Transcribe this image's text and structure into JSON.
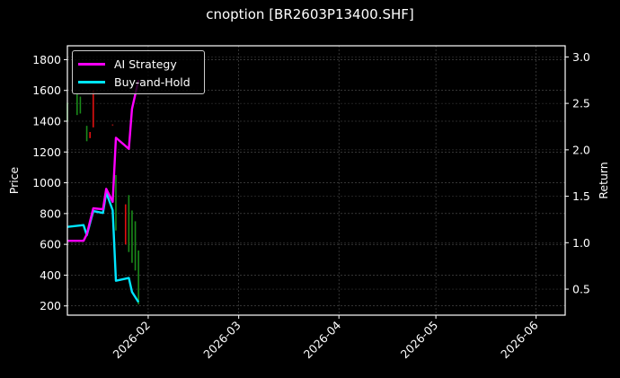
{
  "title": "cnoption [BR2603P13400.SHF]",
  "legend": [
    {
      "label": "AI Strategy",
      "color": "#ff00ff"
    },
    {
      "label": "Buy-and-Hold",
      "color": "#00e5ff"
    }
  ],
  "chart_data": {
    "type": "line",
    "title": "cnoption [BR2603P13400.SHF]",
    "xlabel": "",
    "ylabel": "Price",
    "y2label": "Return",
    "x_ticks": [
      "2026-02",
      "2026-03",
      "2026-04",
      "2026-05",
      "2026-06"
    ],
    "y_ticks": [
      200,
      400,
      600,
      800,
      1000,
      1200,
      1400,
      1600,
      1800
    ],
    "y2_ticks": [
      0.5,
      1.0,
      1.5,
      2.0,
      2.5,
      3.0
    ],
    "ylim": [
      140,
      1890
    ],
    "y2lim": [
      0.22,
      3.12
    ],
    "xlim": [
      "2026-01-07",
      "2026-06-10"
    ],
    "grid": true,
    "legend_position": "upper left",
    "series": [
      {
        "name": "AI Strategy",
        "axis": "right",
        "color": "#ff00ff",
        "x": [
          "2026-01-07",
          "2026-01-12",
          "2026-01-13",
          "2026-01-15",
          "2026-01-18",
          "2026-01-19",
          "2026-01-21",
          "2026-01-22",
          "2026-01-26",
          "2026-01-27",
          "2026-01-29"
        ],
        "values": [
          1.02,
          1.02,
          1.09,
          1.37,
          1.36,
          1.58,
          1.44,
          2.13,
          2.01,
          2.44,
          2.75
        ]
      },
      {
        "name": "Buy-and-Hold",
        "axis": "right",
        "color": "#00e5ff",
        "x": [
          "2026-01-07",
          "2026-01-12",
          "2026-01-13",
          "2026-01-15",
          "2026-01-18",
          "2026-01-19",
          "2026-01-21",
          "2026-01-22",
          "2026-01-26",
          "2026-01-27",
          "2026-01-29"
        ],
        "values": [
          1.17,
          1.19,
          1.08,
          1.34,
          1.32,
          1.54,
          1.35,
          0.59,
          0.62,
          0.47,
          0.36
        ]
      },
      {
        "name": "Price candles",
        "axis": "left",
        "type": "candlestick-wicks",
        "bars": [
          {
            "x": "2026-01-07",
            "low": 1400,
            "high": 1520,
            "color": "#1a8a1a"
          },
          {
            "x": "2026-01-10",
            "low": 1440,
            "high": 1580,
            "color": "#1a8a1a"
          },
          {
            "x": "2026-01-11",
            "low": 1450,
            "high": 1560,
            "color": "#1a8a1a"
          },
          {
            "x": "2026-01-13",
            "low": 1270,
            "high": 1370,
            "color": "#1a8a1a"
          },
          {
            "x": "2026-01-14",
            "low": 1290,
            "high": 1330,
            "color": "#e01010"
          },
          {
            "x": "2026-01-15",
            "low": 1360,
            "high": 1600,
            "color": "#e01010"
          },
          {
            "x": "2026-01-21",
            "low": 1370,
            "high": 1380,
            "color": "#8a1010"
          },
          {
            "x": "2026-01-22",
            "low": 690,
            "high": 1050,
            "color": "#1a8a1a"
          },
          {
            "x": "2026-01-25",
            "low": 600,
            "high": 860,
            "color": "#e01010"
          },
          {
            "x": "2026-01-26",
            "low": 550,
            "high": 920,
            "color": "#1a8a1a"
          },
          {
            "x": "2026-01-27",
            "low": 480,
            "high": 820,
            "color": "#1a8a1a"
          },
          {
            "x": "2026-01-28",
            "low": 430,
            "high": 750,
            "color": "#1a8a1a"
          },
          {
            "x": "2026-01-29",
            "low": 210,
            "high": 560,
            "color": "#1a8a1a"
          }
        ]
      }
    ]
  }
}
